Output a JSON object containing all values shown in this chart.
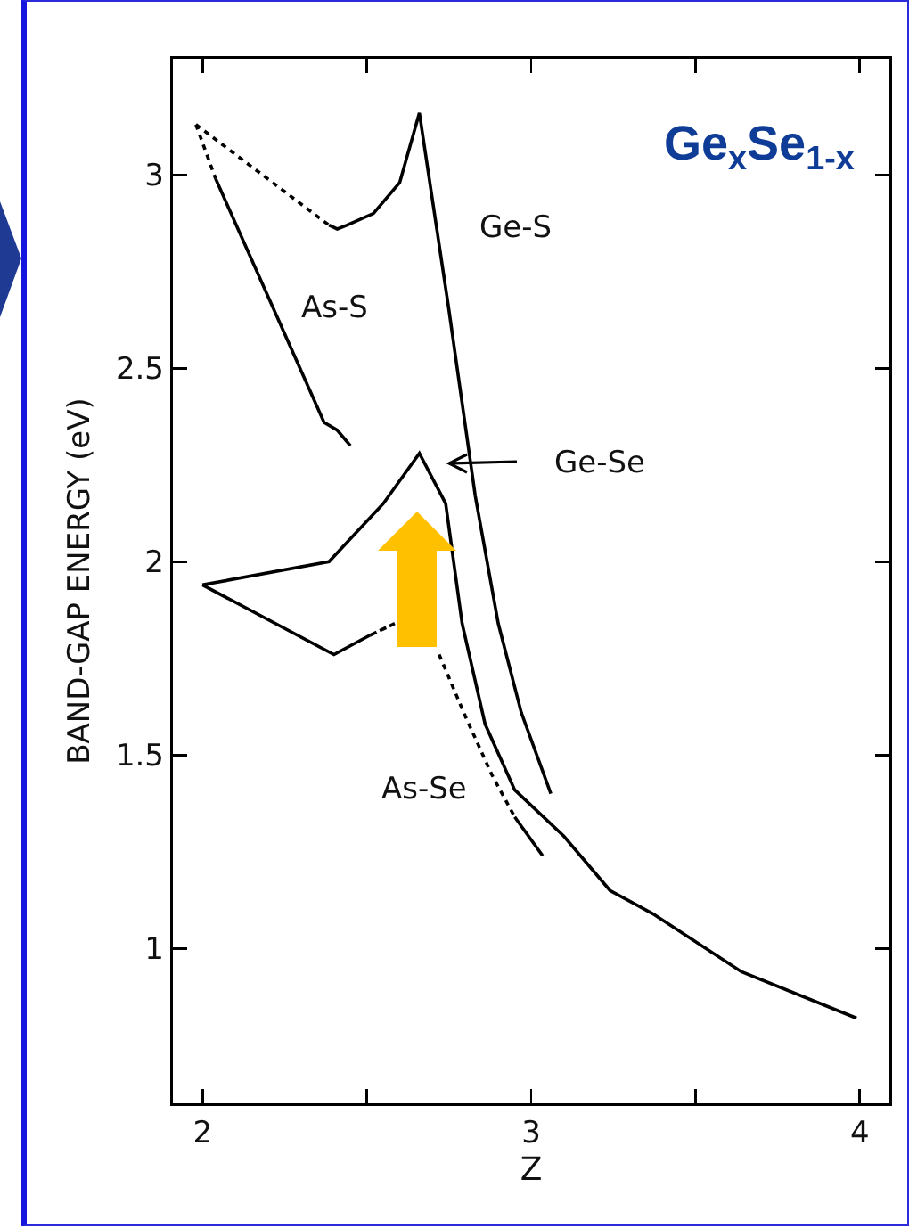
{
  "chart_data": {
    "type": "line",
    "title": "Ge$_{x}$Se$_{1-x}$",
    "xlabel": "Z",
    "ylabel": "BAND-GAP ENERGY (eV)",
    "xlim": [
      1.91,
      4.09
    ],
    "ylim": [
      0.6,
      3.3
    ],
    "xticks": [
      2,
      {
        "value": 2.5,
        "label": null
      },
      3,
      {
        "value": 3.5,
        "label": null
      },
      4
    ],
    "yticks": [
      1,
      1.5,
      2,
      2.5,
      3
    ],
    "grid": false,
    "marker": "none",
    "series": [
      {
        "color": "#000000",
        "line_style": "dotted",
        "x": [
          1.98,
          2.385
        ],
        "values": [
          3.13,
          2.87
        ]
      },
      {
        "color": "#000000",
        "line_style": "solid",
        "x": [
          2.385,
          2.41,
          2.44,
          2.52,
          2.6,
          2.66,
          2.75,
          2.83,
          2.9,
          2.97,
          3.06
        ],
        "values": [
          2.87,
          2.86,
          2.87,
          2.9,
          2.98,
          3.16,
          2.65,
          2.17,
          1.84,
          1.61,
          1.4
        ]
      },
      {
        "color": "#000000",
        "line_style": "dotted",
        "x": [
          1.98,
          2.04
        ],
        "values": [
          3.13,
          2.99
        ]
      },
      {
        "color": "#000000",
        "line_style": "solid",
        "x": [
          2.04,
          2.37,
          2.41,
          2.45
        ],
        "values": [
          2.99,
          2.36,
          2.34,
          2.3
        ]
      },
      {
        "color": "#000000",
        "line_style": "solid",
        "x": [
          2.0,
          2.385,
          2.55,
          2.66,
          2.74,
          2.79,
          2.86,
          2.95,
          3.1,
          3.24,
          3.37,
          3.64,
          3.99
        ],
        "values": [
          1.94,
          2.0,
          2.15,
          2.28,
          2.15,
          1.84,
          1.58,
          1.41,
          1.29,
          1.15,
          1.09,
          0.94,
          0.82
        ]
      },
      {
        "color": "#000000",
        "line_style": "solid",
        "x": [
          2.0,
          2.4,
          2.51
        ],
        "values": [
          1.94,
          1.76,
          1.81
        ]
      },
      {
        "color": "#000000",
        "line_style": "dashed",
        "x": [
          2.51,
          2.585
        ],
        "values": [
          1.81,
          1.84
        ]
      },
      {
        "color": "#000000",
        "line_style": "dotted",
        "x": [
          2.72,
          2.8,
          2.88,
          2.95
        ],
        "values": [
          1.76,
          1.6,
          1.45,
          1.34
        ]
      },
      {
        "color": "#000000",
        "line_style": "solid",
        "x": [
          2.95,
          3.035
        ],
        "values": [
          1.34,
          1.24
        ]
      }
    ],
    "annotations": [
      "Ge-S",
      "As-S",
      "Ge-Se",
      "As-Se"
    ]
  }
}
